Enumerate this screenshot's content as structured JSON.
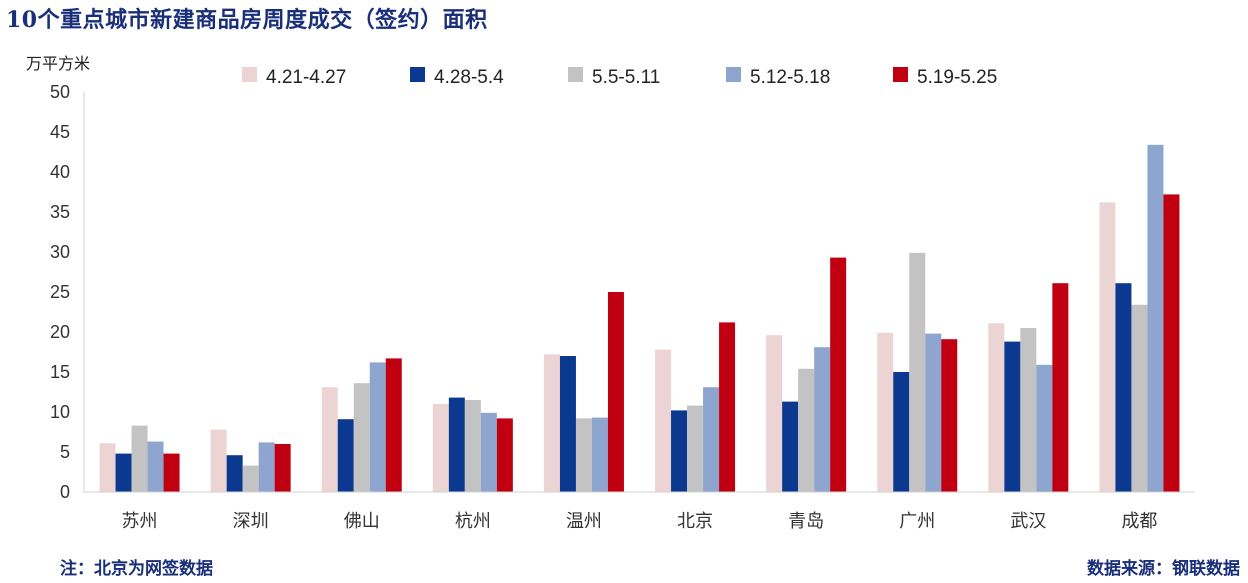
{
  "title": "10个重点城市新建商品房周度成交（签约）面积",
  "unit_label": "万平方米",
  "note": "注：北京为网签数据",
  "source": "数据来源：钢联数据",
  "chart_data": {
    "type": "bar",
    "title": "10个重点城市新建商品房周度成交（签约）面积",
    "ylabel": "万平方米",
    "ylim": [
      0,
      50
    ],
    "yticks": [
      0,
      5,
      10,
      15,
      20,
      25,
      30,
      35,
      40,
      45,
      50
    ],
    "grid": false,
    "legend_position": "top",
    "categories": [
      "苏州",
      "深圳",
      "佛山",
      "杭州",
      "温州",
      "北京",
      "青岛",
      "广州",
      "武汉",
      "成都"
    ],
    "series": [
      {
        "name": "4.21-4.27",
        "color": "#ecd4d4",
        "values": [
          6.1,
          7.8,
          13.1,
          11.0,
          17.2,
          17.8,
          19.6,
          19.9,
          21.1,
          36.2
        ]
      },
      {
        "name": "4.28-5.4",
        "color": "#0b3990",
        "values": [
          4.8,
          4.6,
          9.1,
          11.8,
          17.0,
          10.2,
          11.3,
          15.0,
          18.8,
          26.1
        ]
      },
      {
        "name": "5.5-5.11",
        "color": "#c3c3c3",
        "values": [
          8.3,
          3.3,
          13.6,
          11.5,
          9.2,
          10.8,
          15.4,
          29.9,
          20.5,
          23.4
        ]
      },
      {
        "name": "5.12-5.18",
        "color": "#8ea5cf",
        "values": [
          6.3,
          6.2,
          16.2,
          9.9,
          9.3,
          13.1,
          18.1,
          19.8,
          15.9,
          43.4
        ]
      },
      {
        "name": "5.19-5.25",
        "color": "#c00010",
        "values": [
          4.8,
          6.0,
          16.7,
          9.2,
          25.0,
          21.2,
          29.3,
          19.1,
          26.1,
          37.2
        ]
      }
    ]
  }
}
